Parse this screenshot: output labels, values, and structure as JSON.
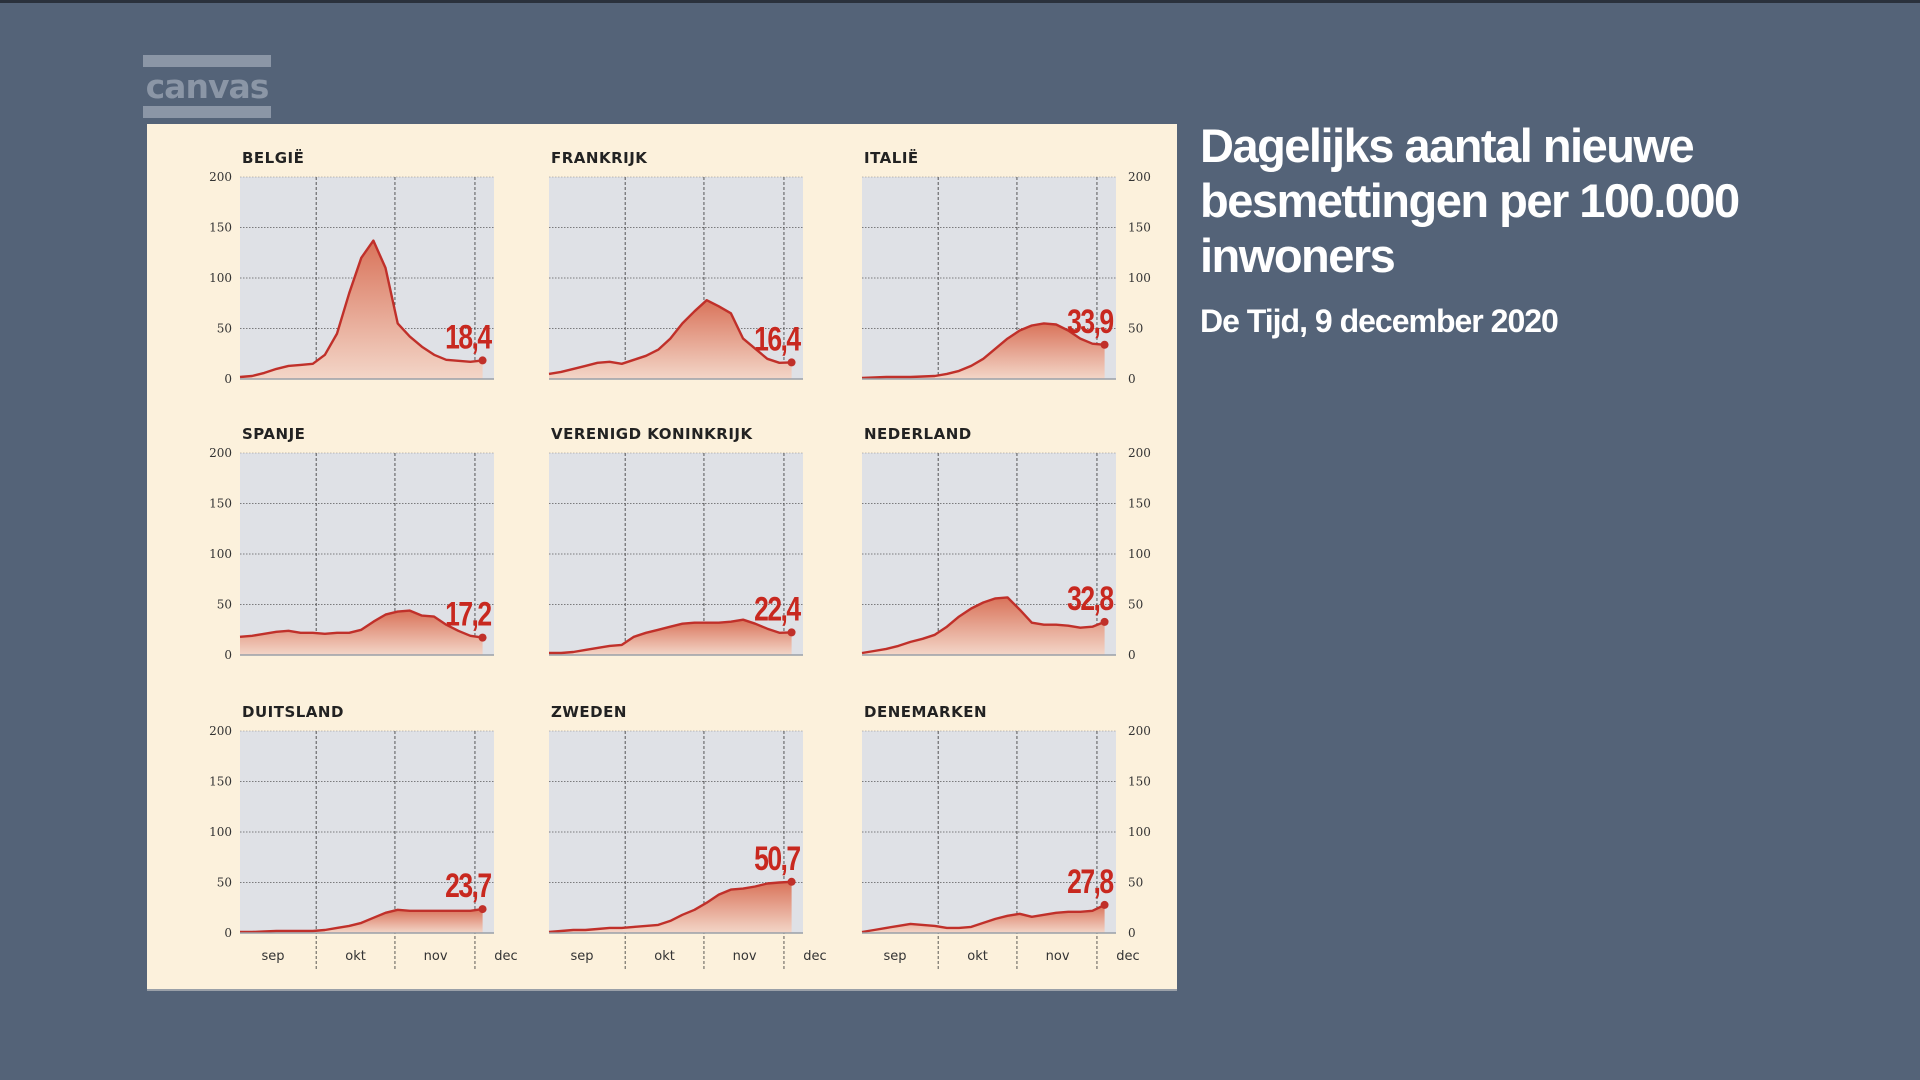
{
  "channel_logo": {
    "text": "canvas"
  },
  "header": {
    "title": "Dagelijks aantal nieuwe besmettingen per 100.000 inwoners",
    "source": "De Tijd, 9 december 2020"
  },
  "colors": {
    "background": "#546378",
    "panel": "#fcf1dc",
    "plot_bg": "#dfe1e6",
    "line": "#c0302a",
    "fill_top": "#d9735a",
    "fill_bottom": "#f3d6c8",
    "label_red": "#c8281f",
    "text_dark": "#222222"
  },
  "chart_data": [
    {
      "type": "area",
      "title": "BELGIË",
      "final_label": "18,4",
      "final_value": 18.4,
      "x": [
        "sep 1",
        "sep 6",
        "sep 11",
        "sep 16",
        "sep 21",
        "sep 26",
        "okt 1",
        "okt 6",
        "okt 11",
        "okt 16",
        "okt 21",
        "okt 26",
        "okt 31",
        "nov 5",
        "nov 10",
        "nov 15",
        "nov 20",
        "nov 25",
        "nov 30",
        "dec 5",
        "dec 8"
      ],
      "values": [
        2,
        3,
        6,
        10,
        13,
        14,
        15,
        24,
        45,
        85,
        120,
        137,
        110,
        55,
        42,
        32,
        24,
        19,
        18,
        17,
        18.4
      ],
      "x_ticks": [
        "sep",
        "okt",
        "nov",
        "dec"
      ],
      "ylim": [
        0,
        200
      ],
      "y_ticks": [
        0,
        50,
        100,
        150,
        200
      ],
      "y_axis_side": "left",
      "show_x_labels": false
    },
    {
      "type": "area",
      "title": "FRANKRIJK",
      "final_label": "16,4",
      "final_value": 16.4,
      "x": [
        "sep 1",
        "sep 6",
        "sep 11",
        "sep 16",
        "sep 21",
        "sep 26",
        "okt 1",
        "okt 6",
        "okt 11",
        "okt 16",
        "okt 21",
        "okt 26",
        "okt 31",
        "nov 5",
        "nov 10",
        "nov 15",
        "nov 20",
        "nov 25",
        "nov 30",
        "dec 5",
        "dec 8"
      ],
      "values": [
        5,
        7,
        10,
        13,
        16,
        17,
        15,
        19,
        23,
        29,
        40,
        55,
        67,
        78,
        72,
        65,
        40,
        30,
        20,
        16,
        16.4
      ],
      "x_ticks": [
        "sep",
        "okt",
        "nov",
        "dec"
      ],
      "ylim": [
        0,
        200
      ],
      "y_ticks": [
        0,
        50,
        100,
        150,
        200
      ],
      "y_axis_side": "none",
      "show_x_labels": false
    },
    {
      "type": "area",
      "title": "ITALIË",
      "final_label": "33,9",
      "final_value": 33.9,
      "x": [
        "sep 1",
        "sep 6",
        "sep 11",
        "sep 16",
        "sep 21",
        "sep 26",
        "okt 1",
        "okt 6",
        "okt 11",
        "okt 16",
        "okt 21",
        "okt 26",
        "okt 31",
        "nov 5",
        "nov 10",
        "nov 15",
        "nov 20",
        "nov 25",
        "nov 30",
        "dec 5",
        "dec 8"
      ],
      "values": [
        1,
        1.5,
        2,
        2,
        2,
        2.5,
        3,
        5,
        8,
        13,
        20,
        30,
        40,
        48,
        53,
        55,
        54,
        48,
        40,
        35,
        33.9
      ],
      "x_ticks": [
        "sep",
        "okt",
        "nov",
        "dec"
      ],
      "ylim": [
        0,
        200
      ],
      "y_ticks": [
        0,
        50,
        100,
        150,
        200
      ],
      "y_axis_side": "right",
      "show_x_labels": false
    },
    {
      "type": "area",
      "title": "SPANJE",
      "final_label": "17,2",
      "final_value": 17.2,
      "x": [
        "sep 1",
        "sep 6",
        "sep 11",
        "sep 16",
        "sep 21",
        "sep 26",
        "okt 1",
        "okt 6",
        "okt 11",
        "okt 16",
        "okt 21",
        "okt 26",
        "okt 31",
        "nov 5",
        "nov 10",
        "nov 15",
        "nov 20",
        "nov 25",
        "nov 30",
        "dec 5",
        "dec 8"
      ],
      "values": [
        18,
        19,
        21,
        23,
        24,
        22,
        22,
        21,
        22,
        22,
        25,
        33,
        40,
        43,
        44,
        39,
        38,
        30,
        24,
        19,
        17.2
      ],
      "x_ticks": [
        "sep",
        "okt",
        "nov",
        "dec"
      ],
      "ylim": [
        0,
        200
      ],
      "y_ticks": [
        0,
        50,
        100,
        150,
        200
      ],
      "y_axis_side": "left",
      "show_x_labels": false
    },
    {
      "type": "area",
      "title": "VERENIGD KONINKRIJK",
      "final_label": "22,4",
      "final_value": 22.4,
      "x": [
        "sep 1",
        "sep 6",
        "sep 11",
        "sep 16",
        "sep 21",
        "sep 26",
        "okt 1",
        "okt 6",
        "okt 11",
        "okt 16",
        "okt 21",
        "okt 26",
        "okt 31",
        "nov 5",
        "nov 10",
        "nov 15",
        "nov 20",
        "nov 25",
        "nov 30",
        "dec 5",
        "dec 8"
      ],
      "values": [
        2,
        2,
        3,
        5,
        7,
        9,
        10,
        18,
        22,
        25,
        28,
        31,
        32,
        32,
        32,
        33,
        35,
        31,
        26,
        22,
        22.4
      ],
      "x_ticks": [
        "sep",
        "okt",
        "nov",
        "dec"
      ],
      "ylim": [
        0,
        200
      ],
      "y_ticks": [
        0,
        50,
        100,
        150,
        200
      ],
      "y_axis_side": "none",
      "show_x_labels": false
    },
    {
      "type": "area",
      "title": "NEDERLAND",
      "final_label": "32,8",
      "final_value": 32.8,
      "x": [
        "sep 1",
        "sep 6",
        "sep 11",
        "sep 16",
        "sep 21",
        "sep 26",
        "okt 1",
        "okt 6",
        "okt 11",
        "okt 16",
        "okt 21",
        "okt 26",
        "okt 31",
        "nov 5",
        "nov 10",
        "nov 15",
        "nov 20",
        "nov 25",
        "nov 30",
        "dec 5",
        "dec 8"
      ],
      "values": [
        2,
        4,
        6,
        9,
        13,
        16,
        20,
        28,
        38,
        46,
        52,
        56,
        57,
        45,
        32,
        30,
        30,
        29,
        27,
        28,
        32.8
      ],
      "x_ticks": [
        "sep",
        "okt",
        "nov",
        "dec"
      ],
      "ylim": [
        0,
        200
      ],
      "y_ticks": [
        0,
        50,
        100,
        150,
        200
      ],
      "y_axis_side": "right",
      "show_x_labels": false
    },
    {
      "type": "area",
      "title": "DUITSLAND",
      "final_label": "23,7",
      "final_value": 23.7,
      "x": [
        "sep 1",
        "sep 6",
        "sep 11",
        "sep 16",
        "sep 21",
        "sep 26",
        "okt 1",
        "okt 6",
        "okt 11",
        "okt 16",
        "okt 21",
        "okt 26",
        "okt 31",
        "nov 5",
        "nov 10",
        "nov 15",
        "nov 20",
        "nov 25",
        "nov 30",
        "dec 5",
        "dec 8"
      ],
      "values": [
        1,
        1,
        1.5,
        2,
        2,
        2,
        2,
        3,
        5,
        7,
        10,
        15,
        20,
        23,
        22,
        22,
        22,
        22,
        22,
        22,
        23.7
      ],
      "x_ticks": [
        "sep",
        "okt",
        "nov",
        "dec"
      ],
      "ylim": [
        0,
        200
      ],
      "y_ticks": [
        0,
        50,
        100,
        150,
        200
      ],
      "y_axis_side": "left",
      "show_x_labels": true
    },
    {
      "type": "area",
      "title": "ZWEDEN",
      "final_label": "50,7",
      "final_value": 50.7,
      "x": [
        "sep 1",
        "sep 6",
        "sep 11",
        "sep 16",
        "sep 21",
        "sep 26",
        "okt 1",
        "okt 6",
        "okt 11",
        "okt 16",
        "okt 21",
        "okt 26",
        "okt 31",
        "nov 5",
        "nov 10",
        "nov 15",
        "nov 20",
        "nov 25",
        "nov 30",
        "dec 5",
        "dec 8"
      ],
      "values": [
        1,
        2,
        3,
        3,
        4,
        5,
        5,
        6,
        7,
        8,
        12,
        18,
        23,
        30,
        38,
        43,
        44,
        46,
        49,
        50,
        50.7
      ],
      "x_ticks": [
        "sep",
        "okt",
        "nov",
        "dec"
      ],
      "ylim": [
        0,
        200
      ],
      "y_ticks": [
        0,
        50,
        100,
        150,
        200
      ],
      "y_axis_side": "none",
      "show_x_labels": true
    },
    {
      "type": "area",
      "title": "DENEMARKEN",
      "final_label": "27,8",
      "final_value": 27.8,
      "x": [
        "sep 1",
        "sep 6",
        "sep 11",
        "sep 16",
        "sep 21",
        "sep 26",
        "okt 1",
        "okt 6",
        "okt 11",
        "okt 16",
        "okt 21",
        "okt 26",
        "okt 31",
        "nov 5",
        "nov 10",
        "nov 15",
        "nov 20",
        "nov 25",
        "nov 30",
        "dec 5",
        "dec 8"
      ],
      "values": [
        1,
        3,
        5,
        7,
        9,
        8,
        7,
        5,
        5,
        6,
        10,
        14,
        17,
        19,
        16,
        18,
        20,
        21,
        21,
        22,
        27.8
      ],
      "x_ticks": [
        "sep",
        "okt",
        "nov",
        "dec"
      ],
      "ylim": [
        0,
        200
      ],
      "y_ticks": [
        0,
        50,
        100,
        150,
        200
      ],
      "y_axis_side": "right",
      "show_x_labels": true
    }
  ]
}
